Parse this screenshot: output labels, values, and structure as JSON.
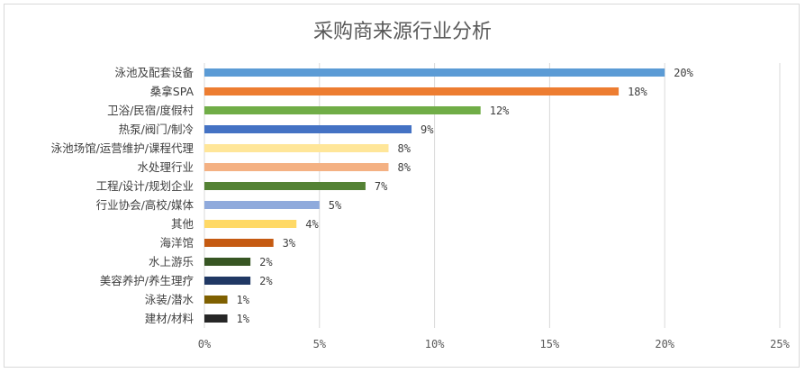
{
  "chart_data": {
    "type": "bar",
    "orientation": "horizontal",
    "title": "采购商来源行业分析",
    "xlabel": "",
    "ylabel": "",
    "xlim": [
      0,
      25
    ],
    "grid": true,
    "legend": "none",
    "value_format": "{v}%",
    "ticks": [
      "0%",
      "5%",
      "10%",
      "15%",
      "20%",
      "25%"
    ],
    "tick_values": [
      0,
      5,
      10,
      15,
      20,
      25
    ],
    "categories": [
      "泳池及配套设备",
      "桑拿SPA",
      "卫浴/民宿/度假村",
      "热泵/阀门/制冷",
      "泳池场馆/运营维护/课程代理",
      "水处理行业",
      "工程/设计/规划企业",
      "行业协会/高校/媒体",
      "其他",
      "海洋馆",
      "水上游乐",
      "美容养护/养生理疗",
      "泳装/潜水",
      "建材/材料"
    ],
    "values": [
      20,
      18,
      12,
      9,
      8,
      8,
      7,
      5,
      4,
      3,
      2,
      2,
      1,
      1
    ],
    "value_labels": [
      "20%",
      "18%",
      "12%",
      "9%",
      "8%",
      "8%",
      "7%",
      "5%",
      "4%",
      "3%",
      "2%",
      "2%",
      "1%",
      "1%"
    ],
    "colors": [
      "#5b9bd5",
      "#ed7d31",
      "#70ad47",
      "#4472c4",
      "#ffe699",
      "#f4b183",
      "#548235",
      "#8faadc",
      "#ffd966",
      "#c55a11",
      "#375623",
      "#203864",
      "#7f6000",
      "#262626"
    ]
  }
}
